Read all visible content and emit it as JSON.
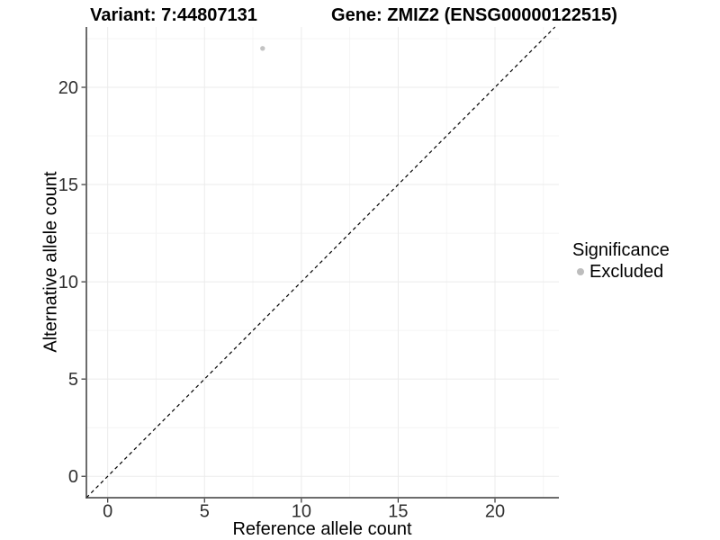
{
  "titles": {
    "left": "Variant: 7:44807131",
    "right": "Gene: ZMIZ2 (ENSG00000122515)"
  },
  "chart_data": {
    "type": "scatter",
    "title": "Variant: 7:44807131 — Gene: ZMIZ2 (ENSG00000122515)",
    "xlabel": "Reference allele count",
    "ylabel": "Alternative allele count",
    "xlim": [
      -1.1,
      23.3
    ],
    "ylim": [
      -1.1,
      23.1
    ],
    "x_major_breaks": [
      0,
      5,
      10,
      15,
      20
    ],
    "x_minor_breaks": [
      2.5,
      7.5,
      12.5,
      17.5,
      22.5
    ],
    "y_major_breaks": [
      0,
      5,
      10,
      15,
      20
    ],
    "y_minor_breaks": [
      2.5,
      7.5,
      12.5,
      17.5,
      22.5
    ],
    "grid": "major+minor",
    "points": [
      {
        "x": 8,
        "y": 22,
        "series": "Excluded"
      }
    ],
    "identity_line": {
      "style": "dashed",
      "slope": 1,
      "intercept": 0
    },
    "legend": {
      "title": "Significance",
      "position": "right",
      "items": [
        {
          "label": "Excluded",
          "color": "#bdbdbd"
        }
      ]
    },
    "colors": {
      "point": "#c3c3c3",
      "grid_major": "#ebebeb",
      "grid_minor": "#f4f4f4",
      "axis_line": "#3c3c3c",
      "tick_mark": "#333333",
      "tick_text": "#303030",
      "dashed_line": "#000000",
      "background": "#ffffff"
    }
  }
}
